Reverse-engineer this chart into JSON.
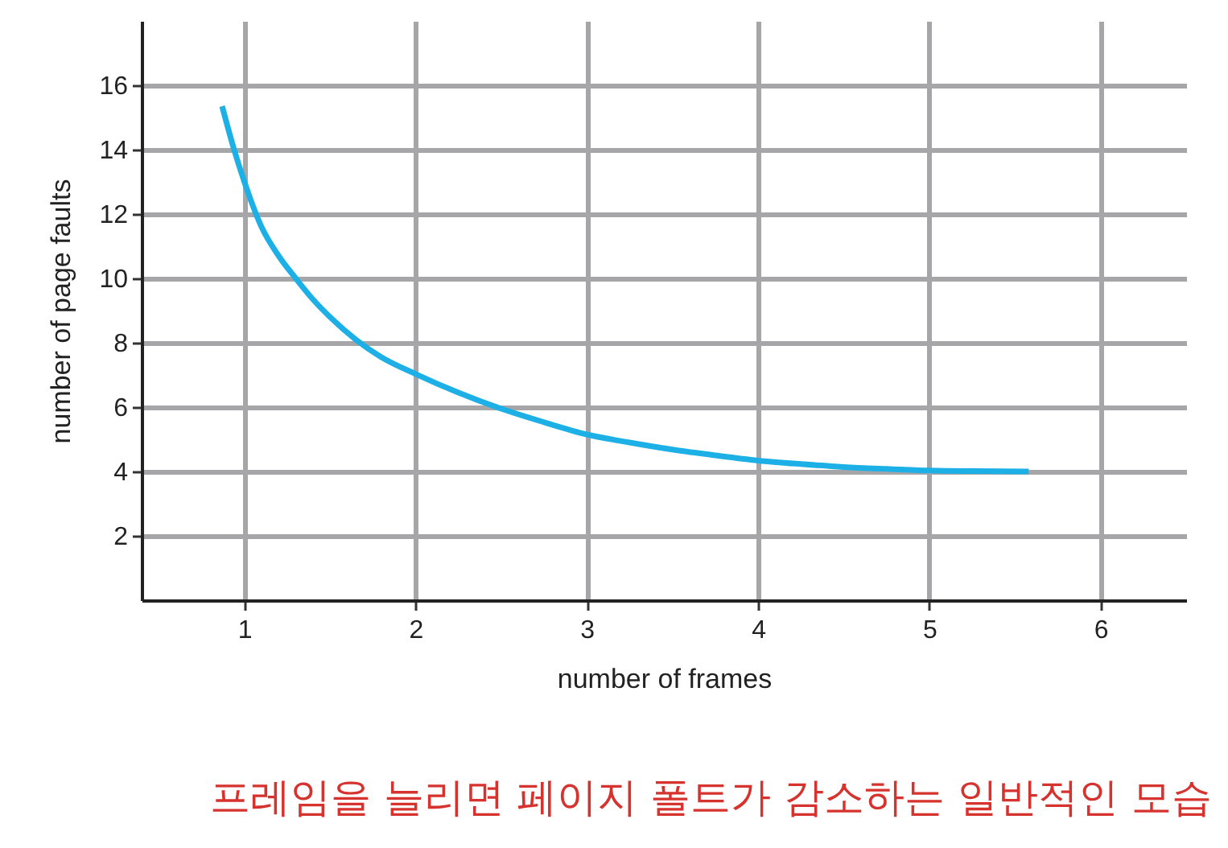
{
  "chart_data": {
    "type": "line",
    "xlabel": "number of frames",
    "ylabel": "number of page faults",
    "x": [
      0.87,
      0.94,
      1.0,
      1.1,
      1.2,
      1.3,
      1.4,
      1.5,
      1.65,
      1.8,
      2.0,
      2.25,
      2.5,
      2.75,
      3.0,
      3.25,
      3.5,
      3.75,
      4.0,
      4.25,
      4.5,
      4.75,
      5.0,
      5.25,
      5.58
    ],
    "series": [
      {
        "color": "#1cb0e6",
        "values": [
          15.35,
          14.0,
          13.0,
          11.6,
          10.7,
          10.0,
          9.35,
          8.8,
          8.1,
          7.55,
          7.03,
          6.45,
          5.95,
          5.53,
          5.15,
          4.9,
          4.68,
          4.5,
          4.34,
          4.23,
          4.14,
          4.08,
          4.03,
          4.01,
          4.0
        ]
      }
    ],
    "xlim": [
      0.4,
      6.5
    ],
    "ylim": [
      0,
      18
    ],
    "xticks": [
      1,
      2,
      3,
      4,
      5,
      6
    ],
    "yticks": [
      2,
      4,
      6,
      8,
      10,
      12,
      14,
      16
    ],
    "grid": true,
    "line_style": "solid",
    "annotations": [
      "프레임을 늘리면 페이지 폴트가 감소하는 일반적인 모습"
    ]
  }
}
